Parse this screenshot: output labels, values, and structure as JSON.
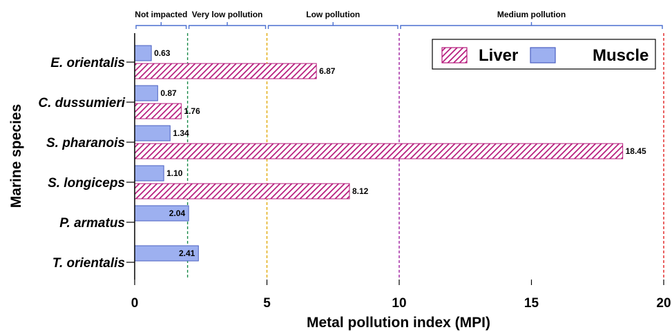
{
  "chart_data": {
    "type": "bar",
    "orientation": "horizontal",
    "categories": [
      "E. orientalis",
      "C. dussumieri",
      "S. pharanois",
      "S. longiceps",
      "P. armatus",
      "T. orientalis"
    ],
    "series": [
      {
        "name": "Muscle",
        "values": [
          0.63,
          0.87,
          1.34,
          1.1,
          2.04,
          2.41
        ],
        "labels": [
          "0.63",
          "0.87",
          "1.34",
          "1.10",
          "2.04",
          "2.41"
        ],
        "color": "#9db0f0",
        "pattern": "solid"
      },
      {
        "name": "Liver",
        "values": [
          6.87,
          1.76,
          18.45,
          8.12,
          null,
          null
        ],
        "labels": [
          "6.87",
          "1.76",
          "18.45",
          "8.12",
          "",
          ""
        ],
        "color": "#b5177a",
        "pattern": "hatched"
      }
    ],
    "xlabel": "Metal pollution index (MPI)",
    "ylabel": "Marine species",
    "xlim": [
      0,
      20
    ],
    "x_ticks": [
      "0",
      "5",
      "10",
      "15",
      "20"
    ],
    "legend_position": "top-right",
    "grid": false,
    "thresholds": [
      {
        "value": 2,
        "color": "#1a8a4a"
      },
      {
        "value": 5,
        "color": "#e0a800"
      },
      {
        "value": 10,
        "color": "#a020a0"
      },
      {
        "value": 20,
        "color": "#e02020"
      }
    ],
    "zones": [
      {
        "label": "Not impacted",
        "from": 0,
        "to": 2
      },
      {
        "label": "Very low pollution",
        "from": 2,
        "to": 5
      },
      {
        "label": "Low pollution",
        "from": 5,
        "to": 10
      },
      {
        "label": "Medium pollution",
        "from": 10,
        "to": 20
      }
    ]
  }
}
